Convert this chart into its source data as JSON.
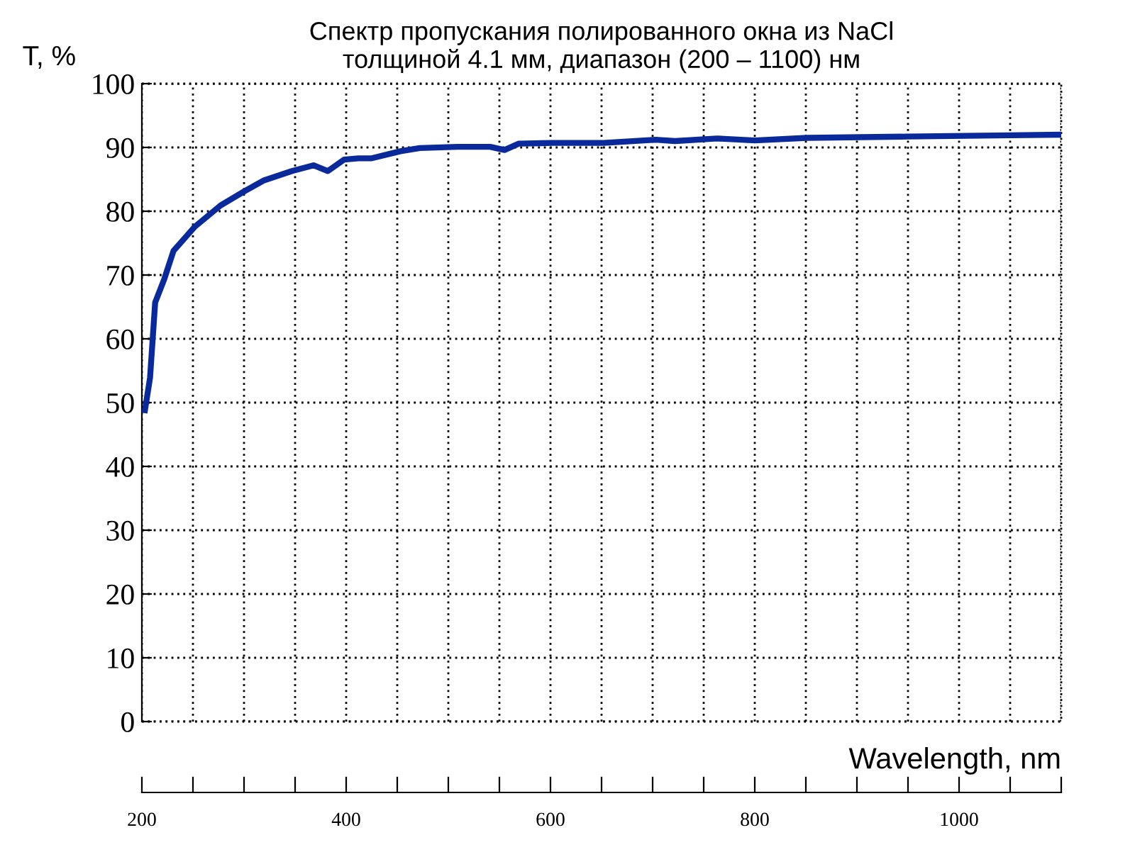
{
  "chart_data": {
    "type": "line",
    "title": "Спектр пропускания полированного окна из NaCl\nтолщиной 4.1 мм, диапазон (200 – 1100) нм",
    "xlabel": "Wavelength, nm",
    "ylabel": "T, %",
    "x": [
      203,
      208,
      213,
      222,
      231,
      252,
      277,
      300,
      319,
      347,
      368,
      382,
      398,
      412,
      425,
      453,
      472,
      509,
      541,
      555,
      569,
      601,
      652,
      703,
      722,
      763,
      800,
      851,
      949,
      1050,
      1099
    ],
    "series": [
      {
        "color": "#0a2a9c",
        "values": [
          48.8,
          53.9,
          65.7,
          69.4,
          73.8,
          77.6,
          80.9,
          83.1,
          84.8,
          86.3,
          87.2,
          86.3,
          88.1,
          88.3,
          88.3,
          89.4,
          89.9,
          90.1,
          90.1,
          89.6,
          90.6,
          90.7,
          90.7,
          91.2,
          91.0,
          91.4,
          91.1,
          91.5,
          91.7,
          91.9,
          92.0
        ]
      }
    ],
    "xlim": [
      200,
      1100
    ],
    "xticks": [
      200,
      {
        "value": 250,
        "label": null
      },
      {
        "value": 300,
        "label": null
      },
      {
        "value": 350,
        "label": null
      },
      400,
      {
        "value": 450,
        "label": null
      },
      {
        "value": 500,
        "label": null
      },
      {
        "value": 550,
        "label": null
      },
      600,
      {
        "value": 650,
        "label": null
      },
      {
        "value": 700,
        "label": null
      },
      {
        "value": 750,
        "label": null
      },
      800,
      {
        "value": 850,
        "label": null
      },
      {
        "value": 900,
        "label": null
      },
      {
        "value": 950,
        "label": null
      },
      1000,
      {
        "value": 1050,
        "label": null
      },
      {
        "value": 1100,
        "label": null
      }
    ],
    "ylim": [
      0,
      100
    ],
    "yticks": [
      0,
      10,
      20,
      30,
      40,
      50,
      60,
      70,
      80,
      90,
      100
    ],
    "grid": true,
    "line_style": "solid",
    "marker": "none"
  }
}
